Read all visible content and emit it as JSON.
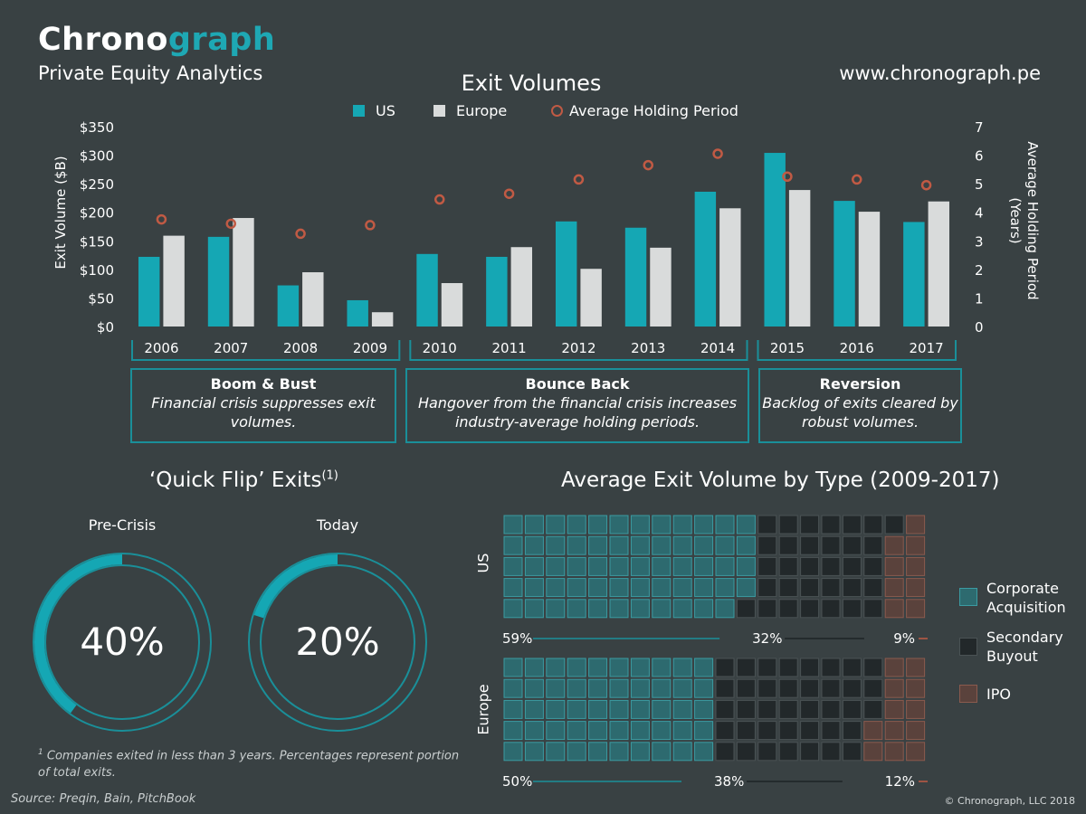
{
  "brand": {
    "part1": "Chrono",
    "part2": "graph"
  },
  "subtitle": "Private Equity Analytics",
  "website": "www.chronograph.pe",
  "colors": {
    "us": "#15a7b4",
    "europe": "#d9dbdb",
    "holding": "#c05a44",
    "background": "#394143",
    "corporate": "#2d6a6f",
    "secondary": "#22282a",
    "ipo": "#5a423c"
  },
  "chart_data": [
    {
      "type": "bar",
      "title": "Exit Volumes",
      "categories": [
        "2006",
        "2007",
        "2008",
        "2009",
        "2010",
        "2011",
        "2012",
        "2013",
        "2014",
        "2015",
        "2016",
        "2017"
      ],
      "series": [
        {
          "name": "US",
          "values": [
            122,
            157,
            72,
            46,
            127,
            122,
            184,
            173,
            236,
            304,
            220,
            183
          ]
        },
        {
          "name": "Europe",
          "values": [
            159,
            190,
            95,
            25,
            76,
            139,
            101,
            138,
            207,
            239,
            201,
            219
          ]
        },
        {
          "name": "Average Holding Period",
          "values": [
            3.75,
            3.6,
            3.25,
            3.55,
            4.45,
            4.65,
            5.15,
            5.65,
            6.05,
            5.25,
            5.15,
            4.95
          ],
          "axis": "right",
          "marker": "circle"
        }
      ],
      "ylabel": "Exit Volume ($B)",
      "ylabel_right": "Average Holding Period (Years)",
      "ylim": [
        0,
        350
      ],
      "ylim_right": [
        0,
        7
      ],
      "yticks": [
        "$0",
        "$50",
        "$100",
        "$150",
        "$200",
        "$250",
        "$300",
        "$350"
      ],
      "yticks_right": [
        "0",
        "1",
        "2",
        "3",
        "4",
        "5",
        "6",
        "7"
      ],
      "legend": "top-center",
      "grid": false
    },
    {
      "type": "waffle",
      "title": "Average Exit Volume by Type (2009-2017)",
      "legend": "right",
      "series_names": [
        "Corporate Acquisition",
        "Secondary Buyout",
        "IPO"
      ],
      "rows": [
        {
          "name": "US",
          "values": [
            59,
            32,
            9
          ],
          "labels": [
            "59%",
            "32%",
            "9%"
          ]
        },
        {
          "name": "Europe",
          "values": [
            50,
            38,
            12
          ],
          "labels": [
            "50%",
            "38%",
            "12%"
          ]
        }
      ]
    },
    {
      "type": "donut",
      "title": "‘Quick Flip’ Exits",
      "title_sup": "(1)",
      "items": [
        {
          "label": "Pre-Crisis",
          "value": 40,
          "display": "40%"
        },
        {
          "label": "Today",
          "value": 20,
          "display": "20%"
        }
      ]
    }
  ],
  "periods": [
    {
      "title": "Boom & Bust",
      "desc": "Financial crisis suppresses exit volumes."
    },
    {
      "title": "Bounce Back",
      "desc": "Hangover from the financial crisis increases industry-average holding periods."
    },
    {
      "title": "Reversion",
      "desc": "Backlog of exits cleared by robust volumes."
    }
  ],
  "legend_labels": {
    "us": "US",
    "europe": "Europe",
    "holding": "Average Holding Period"
  },
  "waffle_legend": [
    "Corporate Acquisition",
    "Secondary Buyout",
    "IPO"
  ],
  "footnote": {
    "sup": "1",
    "text": "Companies exited in less than 3 years. Percentages represent portion of total exits."
  },
  "source": "Source: Preqin, Bain, PitchBook",
  "copyright": "© Chronograph, LLC  2018"
}
